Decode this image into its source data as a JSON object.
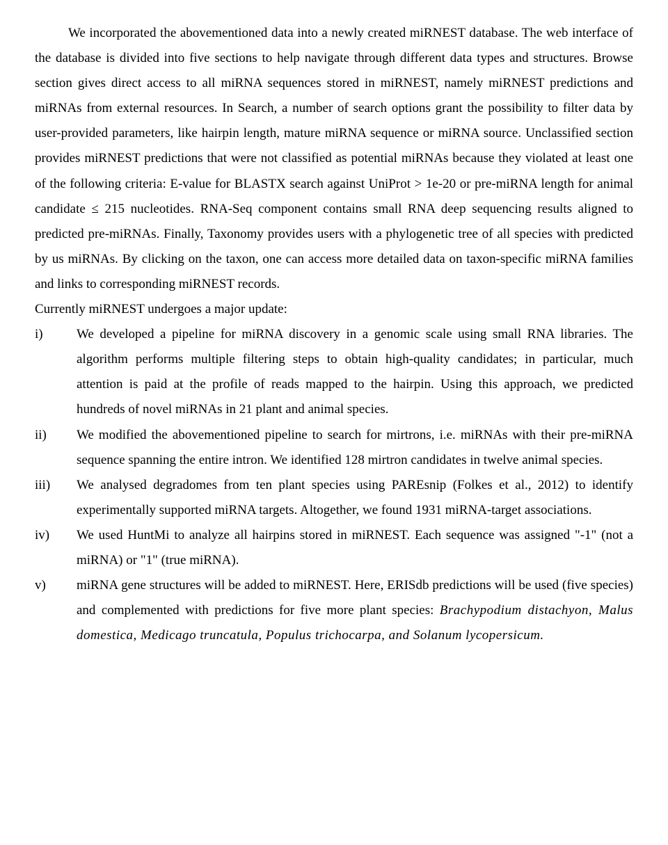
{
  "paragraphs": {
    "p1": "We incorporated the abovementioned data into a newly created miRNEST database. The web interface of the database is divided into five sections to help navigate through different data types and structures. Browse section gives direct access to all miRNA sequences stored in miRNEST, namely miRNEST predictions and miRNAs from external resources. In Search, a number of search options grant the possibility to filter data by user-provided parameters, like hairpin length, mature miRNA sequence or miRNA source. Unclassified section provides miRNEST predictions that were not classified as potential miRNAs because they violated at least one of the following criteria: E-value for BLASTX search against UniProt > 1e-20 or pre-miRNA length for animal candidate ≤ 215 nucleotides. RNA-Seq component contains small RNA deep sequencing results aligned to predicted pre-miRNAs. Finally, Taxonomy provides users with a phylogenetic tree of all species with predicted by us miRNAs. By clicking on the taxon, one can access more detailed data on taxon-specific miRNA families and links to corresponding miRNEST records.",
    "p2": "Currently miRNEST undergoes a major update:"
  },
  "list": {
    "items": [
      {
        "marker": "i)",
        "content": "We developed a pipeline for miRNA discovery in a genomic scale using small RNA libraries. The algorithm performs multiple filtering steps to obtain high-quality candidates; in particular, much attention is paid at the profile of reads mapped to the hairpin. Using this approach, we predicted hundreds of novel miRNAs in 21 plant and animal species."
      },
      {
        "marker": "ii)",
        "content": "We modified the abovementioned pipeline to search for mirtrons, i.e. miRNAs with their pre-miRNA sequence spanning the entire intron. We identified 128 mirtron candidates in twelve animal species."
      },
      {
        "marker": "iii)",
        "content": "We analysed degradomes from ten plant species using PAREsnip (Folkes et al., 2012) to identify experimentally supported miRNA targets. Altogether, we found 1931 miRNA-target associations."
      },
      {
        "marker": "iv)",
        "content": "We used HuntMi to analyze all hairpins stored in miRNEST. Each sequence was assigned \"-1\" (not a miRNA) or \"1\" (true miRNA)."
      },
      {
        "marker": "v)",
        "content_prefix": "miRNA gene structures will be added to miRNEST. Here, ERISdb predictions will be used (five species) and complemented with predictions for five more plant species: ",
        "species": "Brachypodium distachyon, Malus domestica, Medicago truncatula, Populus trichocarpa, and Solanum lycopersicum.",
        "has_italic": true
      }
    ]
  }
}
